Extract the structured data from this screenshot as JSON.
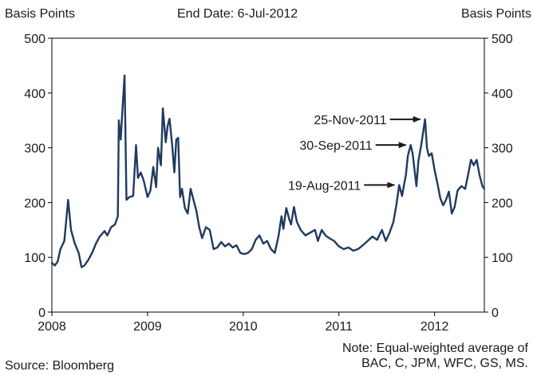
{
  "header": {
    "left_axis_label": "Basis Points",
    "right_axis_label": "Basis Points",
    "subtitle": "End Date: 6-Jul-2012"
  },
  "footer": {
    "source": "Source: Bloomberg",
    "note_line1": "Note: Equal-weighted average of",
    "note_line2": "BAC, C, JPM, WFC, GS, MS."
  },
  "colors": {
    "series": "#1f3a5f",
    "axis": "#000000",
    "text": "#1a1a1a"
  },
  "chart_data": {
    "type": "line",
    "title": "",
    "subtitle": "End Date: 6-Jul-2012",
    "ylabel_left": "Basis Points",
    "ylabel_right": "Basis Points",
    "xlim": [
      2008.0,
      2012.52
    ],
    "ylim": [
      0,
      500
    ],
    "yticks": [
      0,
      100,
      200,
      300,
      400,
      500
    ],
    "xticks": [
      2008,
      2009,
      2010,
      2011,
      2012
    ],
    "xtick_labels": [
      "2008",
      "2009",
      "2010",
      "2011",
      "2012"
    ],
    "grid": false,
    "series": [
      {
        "points": [
          [
            2008.0,
            90
          ],
          [
            2008.03,
            85
          ],
          [
            2008.06,
            92
          ],
          [
            2008.09,
            115
          ],
          [
            2008.13,
            130
          ],
          [
            2008.17,
            205
          ],
          [
            2008.2,
            150
          ],
          [
            2008.24,
            125
          ],
          [
            2008.28,
            108
          ],
          [
            2008.31,
            82
          ],
          [
            2008.34,
            85
          ],
          [
            2008.38,
            95
          ],
          [
            2008.42,
            108
          ],
          [
            2008.46,
            125
          ],
          [
            2008.5,
            138
          ],
          [
            2008.55,
            148
          ],
          [
            2008.58,
            140
          ],
          [
            2008.62,
            155
          ],
          [
            2008.66,
            160
          ],
          [
            2008.69,
            175
          ],
          [
            2008.7,
            350
          ],
          [
            2008.72,
            315
          ],
          [
            2008.74,
            375
          ],
          [
            2008.76,
            432
          ],
          [
            2008.78,
            205
          ],
          [
            2008.81,
            210
          ],
          [
            2008.85,
            212
          ],
          [
            2008.88,
            305
          ],
          [
            2008.9,
            245
          ],
          [
            2008.93,
            255
          ],
          [
            2008.96,
            240
          ],
          [
            2009.0,
            210
          ],
          [
            2009.03,
            222
          ],
          [
            2009.06,
            265
          ],
          [
            2009.09,
            228
          ],
          [
            2009.11,
            300
          ],
          [
            2009.14,
            268
          ],
          [
            2009.16,
            372
          ],
          [
            2009.19,
            310
          ],
          [
            2009.21,
            340
          ],
          [
            2009.23,
            353
          ],
          [
            2009.26,
            300
          ],
          [
            2009.28,
            255
          ],
          [
            2009.3,
            315
          ],
          [
            2009.32,
            318
          ],
          [
            2009.34,
            210
          ],
          [
            2009.36,
            225
          ],
          [
            2009.39,
            190
          ],
          [
            2009.42,
            180
          ],
          [
            2009.45,
            225
          ],
          [
            2009.48,
            205
          ],
          [
            2009.51,
            185
          ],
          [
            2009.54,
            155
          ],
          [
            2009.57,
            135
          ],
          [
            2009.61,
            155
          ],
          [
            2009.65,
            150
          ],
          [
            2009.69,
            115
          ],
          [
            2009.73,
            118
          ],
          [
            2009.77,
            128
          ],
          [
            2009.81,
            120
          ],
          [
            2009.85,
            125
          ],
          [
            2009.89,
            118
          ],
          [
            2009.93,
            122
          ],
          [
            2009.97,
            108
          ],
          [
            2010.01,
            106
          ],
          [
            2010.05,
            108
          ],
          [
            2010.09,
            115
          ],
          [
            2010.13,
            132
          ],
          [
            2010.17,
            140
          ],
          [
            2010.21,
            125
          ],
          [
            2010.25,
            130
          ],
          [
            2010.29,
            115
          ],
          [
            2010.33,
            108
          ],
          [
            2010.37,
            140
          ],
          [
            2010.4,
            175
          ],
          [
            2010.42,
            152
          ],
          [
            2010.45,
            190
          ],
          [
            2010.48,
            170
          ],
          [
            2010.5,
            160
          ],
          [
            2010.53,
            192
          ],
          [
            2010.56,
            165
          ],
          [
            2010.6,
            150
          ],
          [
            2010.65,
            140
          ],
          [
            2010.7,
            145
          ],
          [
            2010.75,
            150
          ],
          [
            2010.78,
            130
          ],
          [
            2010.82,
            150
          ],
          [
            2010.86,
            140
          ],
          [
            2010.9,
            135
          ],
          [
            2010.95,
            130
          ],
          [
            2011.0,
            120
          ],
          [
            2011.05,
            115
          ],
          [
            2011.1,
            118
          ],
          [
            2011.15,
            112
          ],
          [
            2011.2,
            115
          ],
          [
            2011.25,
            122
          ],
          [
            2011.3,
            130
          ],
          [
            2011.35,
            138
          ],
          [
            2011.4,
            132
          ],
          [
            2011.45,
            150
          ],
          [
            2011.49,
            130
          ],
          [
            2011.53,
            145
          ],
          [
            2011.57,
            165
          ],
          [
            2011.6,
            195
          ],
          [
            2011.63,
            232
          ],
          [
            2011.66,
            212
          ],
          [
            2011.68,
            232
          ],
          [
            2011.7,
            250
          ],
          [
            2011.72,
            285
          ],
          [
            2011.75,
            305
          ],
          [
            2011.77,
            290
          ],
          [
            2011.79,
            260
          ],
          [
            2011.81,
            230
          ],
          [
            2011.83,
            275
          ],
          [
            2011.86,
            305
          ],
          [
            2011.9,
            352
          ],
          [
            2011.92,
            300
          ],
          [
            2011.94,
            285
          ],
          [
            2011.97,
            290
          ],
          [
            2012.0,
            260
          ],
          [
            2012.03,
            235
          ],
          [
            2012.06,
            208
          ],
          [
            2012.09,
            195
          ],
          [
            2012.12,
            205
          ],
          [
            2012.15,
            220
          ],
          [
            2012.18,
            180
          ],
          [
            2012.21,
            192
          ],
          [
            2012.24,
            222
          ],
          [
            2012.28,
            230
          ],
          [
            2012.32,
            225
          ],
          [
            2012.35,
            250
          ],
          [
            2012.38,
            278
          ],
          [
            2012.41,
            268
          ],
          [
            2012.44,
            278
          ],
          [
            2012.47,
            250
          ],
          [
            2012.5,
            230
          ],
          [
            2012.52,
            225
          ]
        ]
      }
    ],
    "annotations": [
      {
        "label": "25-Nov-2011",
        "target_x": 2011.9,
        "target_y": 352
      },
      {
        "label": "30-Sep-2011",
        "target_x": 2011.75,
        "target_y": 305
      },
      {
        "label": "19-Aug-2011",
        "target_x": 2011.63,
        "target_y": 232
      }
    ]
  }
}
